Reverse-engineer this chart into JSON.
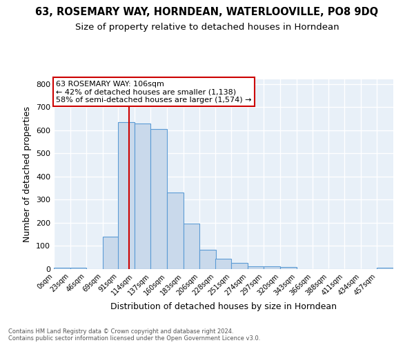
{
  "title1": "63, ROSEMARY WAY, HORNDEAN, WATERLOOVILLE, PO8 9DQ",
  "title2": "Size of property relative to detached houses in Horndean",
  "xlabel": "Distribution of detached houses by size in Horndean",
  "ylabel": "Number of detached properties",
  "bin_labels": [
    "0sqm",
    "23sqm",
    "46sqm",
    "69sqm",
    "91sqm",
    "114sqm",
    "137sqm",
    "160sqm",
    "183sqm",
    "206sqm",
    "228sqm",
    "251sqm",
    "274sqm",
    "297sqm",
    "320sqm",
    "343sqm",
    "366sqm",
    "388sqm",
    "411sqm",
    "434sqm",
    "457sqm"
  ],
  "bin_edges": [
    0,
    23,
    46,
    69,
    91,
    114,
    137,
    160,
    183,
    206,
    228,
    251,
    274,
    297,
    320,
    343,
    366,
    388,
    411,
    434,
    457
  ],
  "bar_heights": [
    7,
    7,
    0,
    140,
    635,
    630,
    605,
    330,
    198,
    83,
    45,
    28,
    12,
    12,
    10,
    0,
    0,
    0,
    0,
    0,
    7
  ],
  "bar_color": "#c9d9eb",
  "bar_edge_color": "#5b9bd5",
  "vline_x": 106,
  "vline_color": "#cc0000",
  "annotation_text": "63 ROSEMARY WAY: 106sqm\n← 42% of detached houses are smaller (1,138)\n58% of semi-detached houses are larger (1,574) →",
  "annotation_box_color": "#ffffff",
  "annotation_box_edge": "#cc0000",
  "ylim": [
    0,
    820
  ],
  "yticks": [
    0,
    100,
    200,
    300,
    400,
    500,
    600,
    700,
    800
  ],
  "footnote": "Contains HM Land Registry data © Crown copyright and database right 2024.\nContains public sector information licensed under the Open Government Licence v3.0.",
  "bg_color": "#e8f0f8",
  "grid_color": "#ffffff",
  "title1_fontsize": 10.5,
  "title2_fontsize": 9.5,
  "annotation_fontsize": 8,
  "xlabel_fontsize": 9,
  "ylabel_fontsize": 9
}
